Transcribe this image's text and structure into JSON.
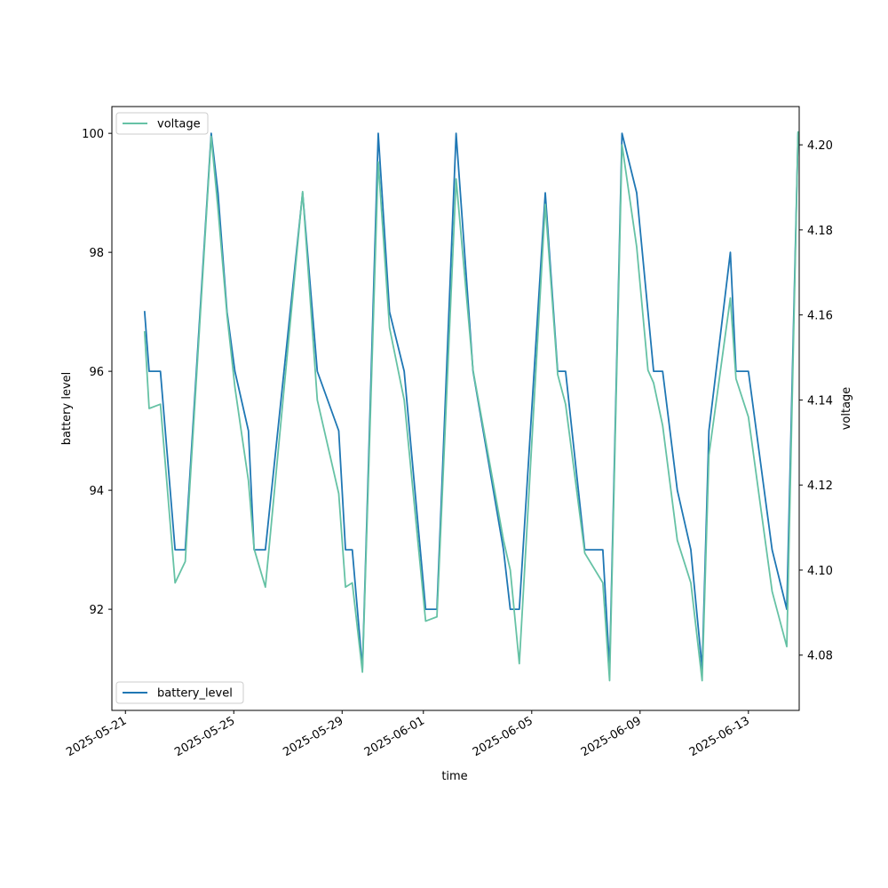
{
  "chart_data": {
    "type": "line",
    "xlabel": "time",
    "ylabel": "battery level",
    "ylabel_right": "voltage",
    "x_ticks": [
      "2025-05-21",
      "2025-05-25",
      "2025-05-29",
      "2025-06-01",
      "2025-06-05",
      "2025-06-09",
      "2025-06-13"
    ],
    "xlim": [
      "2025-05-20T12:00",
      "2025-06-14T21:00"
    ],
    "left_axis": {
      "ylim": [
        90.3,
        100.45
      ],
      "ticks": [
        92,
        94,
        96,
        98,
        100
      ]
    },
    "right_axis": {
      "ylim": [
        4.067,
        4.209
      ],
      "ticks": [
        4.08,
        4.1,
        4.12,
        4.14,
        4.16,
        4.18,
        4.2
      ]
    },
    "legend_left": {
      "label": "battery_level",
      "placement": "lower left"
    },
    "legend_right": {
      "label": "voltage",
      "placement": "upper left"
    },
    "colors": {
      "battery_level": "#1f77b4",
      "voltage": "#66c2a5"
    },
    "series": [
      {
        "name": "battery_level",
        "axis": "left",
        "points": [
          [
            "2025-05-21T17:00",
            97
          ],
          [
            "2025-05-21T21:00",
            96
          ],
          [
            "2025-05-22T07:00",
            96
          ],
          [
            "2025-05-22T20:00",
            93
          ],
          [
            "2025-05-23T05:00",
            93
          ],
          [
            "2025-05-24T04:00",
            100
          ],
          [
            "2025-05-24T10:00",
            99
          ],
          [
            "2025-05-24T18:00",
            97
          ],
          [
            "2025-05-25T01:00",
            96
          ],
          [
            "2025-05-25T13:00",
            95
          ],
          [
            "2025-05-25T18:00",
            93
          ],
          [
            "2025-05-26T04:00",
            93
          ],
          [
            "2025-05-27T13:00",
            99
          ],
          [
            "2025-05-28T02:00",
            96
          ],
          [
            "2025-05-28T21:00",
            95
          ],
          [
            "2025-05-29T03:00",
            93
          ],
          [
            "2025-05-29T09:00",
            93
          ],
          [
            "2025-05-29T18:00",
            91
          ],
          [
            "2025-05-30T08:00",
            100
          ],
          [
            "2025-05-30T18:00",
            97
          ],
          [
            "2025-05-31T07:00",
            96
          ],
          [
            "2025-06-01T02:00",
            92
          ],
          [
            "2025-06-01T12:00",
            92
          ],
          [
            "2025-06-02T05:00",
            100
          ],
          [
            "2025-06-02T20:00",
            96
          ],
          [
            "2025-06-03T23:00",
            93
          ],
          [
            "2025-06-04T05:00",
            92
          ],
          [
            "2025-06-04T13:00",
            92
          ],
          [
            "2025-06-05T12:00",
            99
          ],
          [
            "2025-06-05T23:00",
            96
          ],
          [
            "2025-06-06T06:00",
            96
          ],
          [
            "2025-06-06T23:00",
            93
          ],
          [
            "2025-06-07T15:00",
            93
          ],
          [
            "2025-06-07T21:00",
            91
          ],
          [
            "2025-06-08T08:00",
            100
          ],
          [
            "2025-06-08T21:00",
            99
          ],
          [
            "2025-06-09T07:00",
            97
          ],
          [
            "2025-06-09T12:00",
            96
          ],
          [
            "2025-06-09T20:00",
            96
          ],
          [
            "2025-06-10T09:00",
            94
          ],
          [
            "2025-06-10T21:00",
            93
          ],
          [
            "2025-06-11T07:00",
            91
          ],
          [
            "2025-06-11T13:00",
            95
          ],
          [
            "2025-06-12T08:00",
            98
          ],
          [
            "2025-06-12T13:00",
            96
          ],
          [
            "2025-06-13T00:00",
            96
          ],
          [
            "2025-06-13T21:00",
            93
          ],
          [
            "2025-06-14T10:00",
            92
          ],
          [
            "2025-06-14T20:00",
            100
          ]
        ]
      },
      {
        "name": "voltage",
        "axis": "right",
        "points": [
          [
            "2025-05-21T17:00",
            4.156
          ],
          [
            "2025-05-21T21:00",
            4.138
          ],
          [
            "2025-05-22T07:00",
            4.139
          ],
          [
            "2025-05-22T20:00",
            4.097
          ],
          [
            "2025-05-23T05:00",
            4.102
          ],
          [
            "2025-05-24T04:00",
            4.202
          ],
          [
            "2025-05-24T10:00",
            4.185
          ],
          [
            "2025-05-24T18:00",
            4.16
          ],
          [
            "2025-05-25T01:00",
            4.143
          ],
          [
            "2025-05-25T13:00",
            4.121
          ],
          [
            "2025-05-25T18:00",
            4.105
          ],
          [
            "2025-05-26T04:00",
            4.096
          ],
          [
            "2025-05-27T13:00",
            4.189
          ],
          [
            "2025-05-28T02:00",
            4.14
          ],
          [
            "2025-05-28T21:00",
            4.118
          ],
          [
            "2025-05-29T03:00",
            4.096
          ],
          [
            "2025-05-29T09:00",
            4.097
          ],
          [
            "2025-05-29T18:00",
            4.076
          ],
          [
            "2025-05-30T08:00",
            4.196
          ],
          [
            "2025-05-30T18:00",
            4.157
          ],
          [
            "2025-05-31T07:00",
            4.14
          ],
          [
            "2025-06-01T02:00",
            4.088
          ],
          [
            "2025-06-01T12:00",
            4.089
          ],
          [
            "2025-06-02T05:00",
            4.192
          ],
          [
            "2025-06-02T20:00",
            4.147
          ],
          [
            "2025-06-03T23:00",
            4.107
          ],
          [
            "2025-06-04T05:00",
            4.1
          ],
          [
            "2025-06-04T13:00",
            4.078
          ],
          [
            "2025-06-05T12:00",
            4.186
          ],
          [
            "2025-06-05T23:00",
            4.146
          ],
          [
            "2025-06-06T06:00",
            4.139
          ],
          [
            "2025-06-06T23:00",
            4.104
          ],
          [
            "2025-06-07T15:00",
            4.097
          ],
          [
            "2025-06-07T21:00",
            4.074
          ],
          [
            "2025-06-08T08:00",
            4.2
          ],
          [
            "2025-06-08T21:00",
            4.176
          ],
          [
            "2025-06-09T07:00",
            4.147
          ],
          [
            "2025-06-09T12:00",
            4.144
          ],
          [
            "2025-06-09T20:00",
            4.134
          ],
          [
            "2025-06-10T09:00",
            4.107
          ],
          [
            "2025-06-10T21:00",
            4.097
          ],
          [
            "2025-06-11T07:00",
            4.074
          ],
          [
            "2025-06-11T13:00",
            4.127
          ],
          [
            "2025-06-12T08:00",
            4.164
          ],
          [
            "2025-06-12T13:00",
            4.145
          ],
          [
            "2025-06-13T00:00",
            4.136
          ],
          [
            "2025-06-13T21:00",
            4.095
          ],
          [
            "2025-06-14T10:00",
            4.082
          ],
          [
            "2025-06-14T20:00",
            4.203
          ]
        ]
      }
    ]
  }
}
